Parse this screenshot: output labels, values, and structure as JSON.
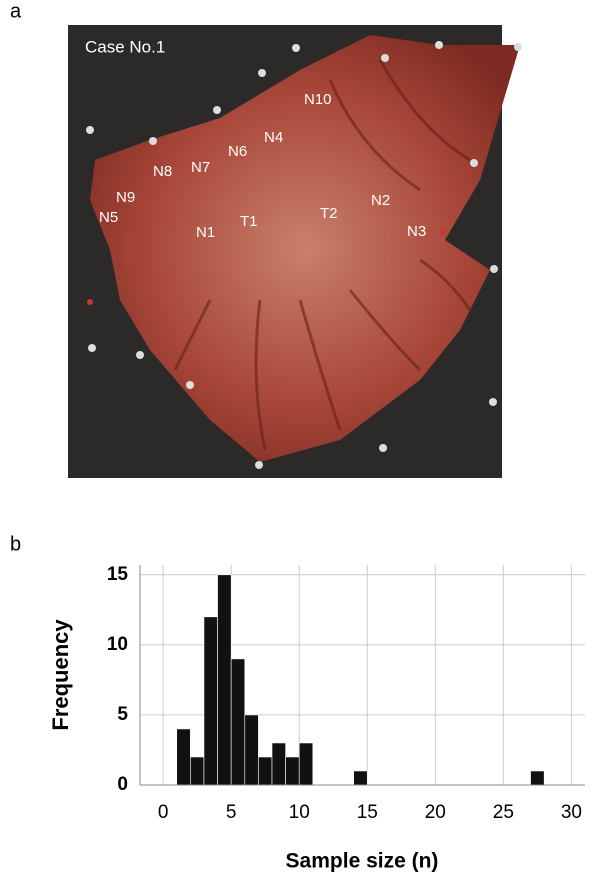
{
  "panel_a": {
    "label": "a",
    "case": "Case No.1",
    "markers": [
      "N10",
      "N4",
      "N6",
      "N7",
      "N8",
      "N9",
      "N5",
      "N1",
      "T1",
      "T2",
      "N2",
      "N3"
    ]
  },
  "panel_b": {
    "label": "b"
  },
  "chart_data": {
    "type": "histogram",
    "x_label": "Sample size (n)",
    "y_label": "Frequency",
    "bins": [
      1,
      2,
      3,
      4,
      5,
      6,
      7,
      8,
      9,
      10,
      11,
      12,
      13,
      14,
      15,
      16,
      17,
      18,
      19,
      20,
      21,
      22,
      23,
      24,
      25,
      26,
      27,
      28
    ],
    "values": [
      4,
      2,
      12,
      15,
      9,
      5,
      2,
      3,
      2,
      3,
      0,
      0,
      0,
      1,
      0,
      0,
      0,
      0,
      0,
      0,
      0,
      0,
      0,
      0,
      0,
      0,
      1
    ],
    "color": "#111111",
    "xlim": [
      -1.7,
      31
    ],
    "xticks": [
      0,
      5,
      10,
      15,
      20,
      25,
      30
    ],
    "ylim": [
      0,
      15.7
    ],
    "yticks": [
      0,
      5,
      10,
      15
    ],
    "grid": true
  }
}
